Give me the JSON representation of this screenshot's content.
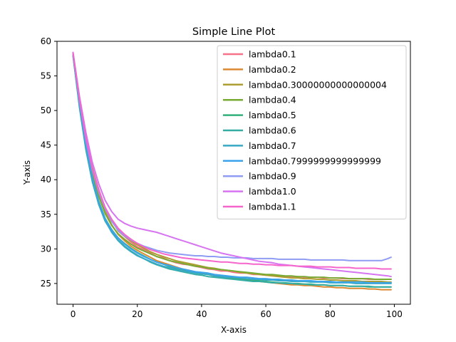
{
  "chart_data": {
    "type": "line",
    "title": "Simple Line Plot",
    "xlabel": "X-axis",
    "ylabel": "Y-axis",
    "xlim": [
      -5,
      105
    ],
    "ylim": [
      22,
      60
    ],
    "xticks": [
      0,
      20,
      40,
      60,
      80,
      100
    ],
    "yticks": [
      25,
      30,
      35,
      40,
      45,
      50,
      55,
      60
    ],
    "grid": false,
    "legend_position": "top-right",
    "x": [
      0,
      2,
      4,
      6,
      8,
      10,
      12,
      14,
      16,
      18,
      20,
      22,
      24,
      26,
      28,
      30,
      32,
      34,
      36,
      38,
      40,
      42,
      44,
      46,
      48,
      50,
      52,
      54,
      56,
      58,
      60,
      62,
      64,
      66,
      68,
      70,
      72,
      74,
      76,
      78,
      80,
      82,
      84,
      86,
      88,
      90,
      92,
      94,
      96,
      98,
      99
    ],
    "series": [
      {
        "name": "lambda0.1",
        "color": "#f77189",
        "values": [
          58.2,
          51.5,
          46.0,
          41.5,
          38.6,
          35.9,
          34.2,
          32.6,
          31.8,
          31.0,
          30.3,
          29.9,
          29.4,
          28.9,
          28.7,
          28.3,
          28.0,
          27.8,
          27.7,
          27.5,
          27.3,
          27.1,
          27.0,
          26.8,
          26.8,
          26.6,
          26.5,
          26.5,
          26.3,
          26.3,
          26.2,
          26.2,
          26.1,
          26.0,
          26.0,
          26.0,
          25.9,
          25.9,
          25.9,
          25.8,
          25.8,
          25.8,
          25.7,
          25.7,
          25.7,
          25.7,
          25.6,
          25.6,
          25.6,
          25.6,
          25.6
        ]
      },
      {
        "name": "lambda0.2",
        "color": "#dc8932",
        "values": [
          58.0,
          51.0,
          45.5,
          41.0,
          38.0,
          35.4,
          33.5,
          32.1,
          31.2,
          30.4,
          29.8,
          29.3,
          28.8,
          28.3,
          28.0,
          27.7,
          27.4,
          27.1,
          26.9,
          26.7,
          26.5,
          26.3,
          26.1,
          26.0,
          25.8,
          25.7,
          25.6,
          25.5,
          25.4,
          25.3,
          25.2,
          25.1,
          25.0,
          24.9,
          24.8,
          24.8,
          24.7,
          24.7,
          24.6,
          24.5,
          24.5,
          24.4,
          24.4,
          24.3,
          24.3,
          24.3,
          24.2,
          24.2,
          24.1,
          24.1,
          24.1
        ]
      },
      {
        "name": "lambda0.30000000000000004",
        "color": "#ae9d31",
        "values": [
          58.3,
          51.8,
          46.2,
          41.8,
          38.5,
          35.7,
          34.0,
          32.8,
          31.9,
          31.2,
          30.6,
          30.1,
          29.6,
          29.2,
          28.9,
          28.6,
          28.3,
          28.1,
          27.9,
          27.7,
          27.5,
          27.3,
          27.2,
          27.0,
          26.9,
          26.8,
          26.6,
          26.5,
          26.4,
          26.3,
          26.2,
          26.1,
          26.0,
          25.9,
          25.8,
          25.8,
          25.7,
          25.7,
          25.6,
          25.6,
          25.5,
          25.5,
          25.4,
          25.4,
          25.4,
          25.3,
          25.3,
          25.3,
          25.3,
          25.2,
          25.2
        ]
      },
      {
        "name": "lambda0.4",
        "color": "#77ab31",
        "values": [
          58.1,
          51.2,
          45.4,
          40.8,
          37.6,
          35.1,
          33.4,
          32.2,
          31.4,
          30.7,
          30.1,
          29.7,
          29.3,
          28.9,
          28.6,
          28.3,
          28.1,
          27.9,
          27.7,
          27.5,
          27.4,
          27.2,
          27.1,
          27.0,
          26.9,
          26.8,
          26.7,
          26.6,
          26.5,
          26.4,
          26.3,
          26.3,
          26.2,
          26.1,
          26.1,
          26.0,
          26.0,
          25.9,
          25.9,
          25.9,
          25.8,
          25.8,
          25.8,
          25.7,
          25.7,
          25.7,
          25.7,
          25.6,
          25.6,
          25.6,
          25.6
        ]
      },
      {
        "name": "lambda0.5",
        "color": "#33b07a",
        "values": [
          58.0,
          50.6,
          44.7,
          40.1,
          36.9,
          34.4,
          32.8,
          31.6,
          30.8,
          30.1,
          29.5,
          29.0,
          28.5,
          28.1,
          27.8,
          27.5,
          27.2,
          27.0,
          26.8,
          26.6,
          26.4,
          26.3,
          26.1,
          26.0,
          25.9,
          25.8,
          25.7,
          25.6,
          25.5,
          25.4,
          25.3,
          25.2,
          25.1,
          25.1,
          25.0,
          25.0,
          24.9,
          24.9,
          24.8,
          24.8,
          24.7,
          24.7,
          24.7,
          24.6,
          24.6,
          24.6,
          24.5,
          24.5,
          24.5,
          24.5,
          24.5
        ]
      },
      {
        "name": "lambda0.6",
        "color": "#36ada4",
        "values": [
          57.9,
          50.4,
          44.3,
          39.7,
          36.4,
          34.0,
          32.5,
          31.3,
          30.4,
          29.7,
          29.1,
          28.6,
          28.1,
          27.7,
          27.4,
          27.1,
          26.9,
          26.7,
          26.5,
          26.3,
          26.2,
          26.0,
          25.9,
          25.8,
          25.7,
          25.6,
          25.5,
          25.4,
          25.3,
          25.3,
          25.2,
          25.1,
          25.1,
          25.0,
          25.0,
          24.9,
          24.9,
          24.8,
          24.8,
          24.8,
          24.7,
          24.7,
          24.7,
          24.6,
          24.6,
          24.6,
          24.6,
          24.5,
          24.5,
          24.5,
          24.5
        ]
      },
      {
        "name": "lambda0.7",
        "color": "#38a9c5",
        "values": [
          58.1,
          50.8,
          44.8,
          40.0,
          36.6,
          34.1,
          32.4,
          31.2,
          30.3,
          29.6,
          29.0,
          28.6,
          28.2,
          27.8,
          27.5,
          27.3,
          27.0,
          26.8,
          26.7,
          26.5,
          26.4,
          26.3,
          26.1,
          26.0,
          25.9,
          25.9,
          25.8,
          25.7,
          25.6,
          25.6,
          25.5,
          25.5,
          25.4,
          25.4,
          25.3,
          25.3,
          25.3,
          25.2,
          25.2,
          25.2,
          25.1,
          25.1,
          25.1,
          25.1,
          25.0,
          25.0,
          25.0,
          25.0,
          25.0,
          25.0,
          25.0
        ]
      },
      {
        "name": "lambda0.7999999999999999",
        "color": "#3ba3ec",
        "values": [
          58.2,
          51.0,
          45.0,
          40.2,
          36.8,
          34.3,
          32.7,
          31.6,
          30.7,
          30.0,
          29.4,
          28.9,
          28.5,
          28.1,
          27.8,
          27.6,
          27.3,
          27.1,
          26.9,
          26.7,
          26.6,
          26.5,
          26.3,
          26.2,
          26.1,
          26.0,
          25.9,
          25.9,
          25.8,
          25.7,
          25.7,
          25.6,
          25.6,
          25.5,
          25.5,
          25.4,
          25.4,
          25.4,
          25.3,
          25.3,
          25.3,
          25.2,
          25.2,
          25.2,
          25.2,
          25.2,
          25.1,
          25.1,
          25.1,
          25.1,
          25.1
        ]
      },
      {
        "name": "lambda0.9",
        "color": "#8f9cf3",
        "values": [
          58.3,
          51.4,
          45.8,
          41.4,
          38.2,
          35.8,
          34.0,
          32.7,
          31.9,
          31.3,
          30.8,
          30.4,
          30.1,
          29.8,
          29.6,
          29.4,
          29.3,
          29.2,
          29.1,
          29.0,
          29.0,
          28.9,
          28.9,
          28.8,
          28.8,
          28.7,
          28.7,
          28.7,
          28.6,
          28.6,
          28.6,
          28.6,
          28.5,
          28.5,
          28.5,
          28.5,
          28.5,
          28.4,
          28.4,
          28.4,
          28.4,
          28.4,
          28.4,
          28.3,
          28.3,
          28.3,
          28.3,
          28.3,
          28.3,
          28.6,
          28.8
        ]
      },
      {
        "name": "lambda1.0",
        "color": "#d774f1",
        "values": [
          58.4,
          52.0,
          46.8,
          42.5,
          39.4,
          37.0,
          35.4,
          34.3,
          33.7,
          33.3,
          33.0,
          32.8,
          32.6,
          32.4,
          32.1,
          31.8,
          31.5,
          31.2,
          30.9,
          30.6,
          30.3,
          30.0,
          29.7,
          29.4,
          29.2,
          29.0,
          28.8,
          28.6,
          28.4,
          28.2,
          28.1,
          28.0,
          27.8,
          27.7,
          27.6,
          27.5,
          27.4,
          27.3,
          27.2,
          27.1,
          27.0,
          26.9,
          26.8,
          26.7,
          26.6,
          26.5,
          26.4,
          26.3,
          26.2,
          26.1,
          26.0
        ]
      },
      {
        "name": "lambda1.1",
        "color": "#f565cc",
        "values": [
          58.3,
          51.6,
          46.0,
          41.6,
          38.5,
          36.0,
          34.3,
          33.0,
          32.1,
          31.4,
          30.8,
          30.3,
          29.9,
          29.6,
          29.3,
          29.1,
          28.9,
          28.7,
          28.6,
          28.5,
          28.4,
          28.3,
          28.2,
          28.1,
          28.1,
          28.0,
          27.9,
          27.9,
          27.8,
          27.8,
          27.7,
          27.7,
          27.6,
          27.6,
          27.6,
          27.5,
          27.5,
          27.5,
          27.4,
          27.4,
          27.4,
          27.3,
          27.3,
          27.3,
          27.2,
          27.2,
          27.2,
          27.2,
          27.1,
          27.1,
          27.1
        ]
      }
    ]
  }
}
